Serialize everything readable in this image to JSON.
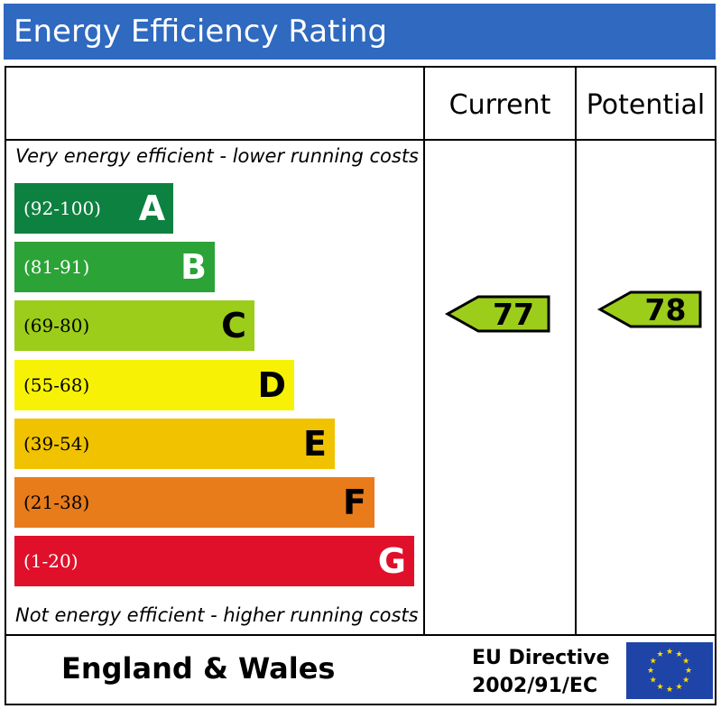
{
  "title": "Energy Efficiency Rating",
  "columns": {
    "current": "Current",
    "potential": "Potential"
  },
  "notes": {
    "top": "Very energy efficient - lower running costs",
    "bottom": "Not energy efficient - higher running costs"
  },
  "chart_data": {
    "type": "bar",
    "title": "Energy Efficiency Rating",
    "categories": [
      "A",
      "B",
      "C",
      "D",
      "E",
      "F",
      "G"
    ],
    "ranges": [
      "(92-100)",
      "(81-91)",
      "(69-80)",
      "(55-68)",
      "(39-54)",
      "(21-38)",
      "(1-20)"
    ],
    "colors": [
      "#0d8140",
      "#2ba337",
      "#9ccd1a",
      "#f7f205",
      "#f0c200",
      "#e87b1a",
      "#e0102a"
    ],
    "text_colors": [
      "#ffffff",
      "#ffffff",
      "#000000",
      "#000000",
      "#000000",
      "#000000",
      "#ffffff"
    ],
    "range_colors": [
      "#ffffff",
      "#ffffff",
      "#000000",
      "#000000",
      "#000000",
      "#000000",
      "#ffffff"
    ],
    "current": {
      "value": 77,
      "band": "C",
      "color": "#9ccd1a"
    },
    "potential": {
      "value": 78,
      "band": "C",
      "color": "#9ccd1a"
    }
  },
  "footer": {
    "region": "England & Wales",
    "directive_line1": "EU Directive",
    "directive_line2": "2002/91/EC"
  },
  "icons": {
    "flag": "eu-flag-icon"
  }
}
